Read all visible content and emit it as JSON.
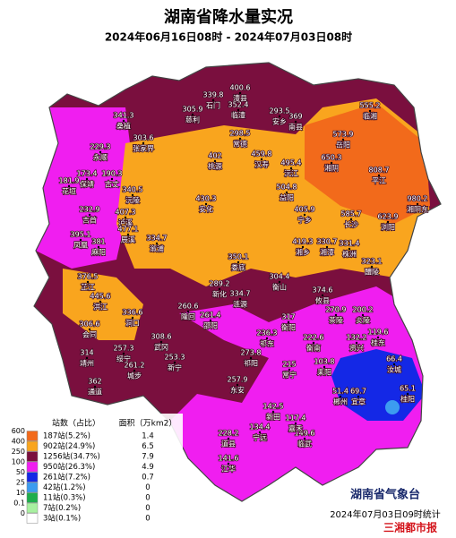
{
  "header": {
    "title": "湖南省降水量实况",
    "subtitle": "2024年06月16日08时 - 2024年07月03日08时"
  },
  "legend": {
    "col_stations": "站数（占比）",
    "col_area": "面积（万km2）",
    "rows": [
      {
        "level": 600,
        "color": "#f26a1b",
        "stations": "187站(5.2%)",
        "area": 1.4
      },
      {
        "level": 400,
        "color": "#f9a51e",
        "stations": "902站(24.9%)",
        "area": 6.5
      },
      {
        "level": 250,
        "color": "#7a0f3e",
        "stations": "1256站(34.7%)",
        "area": 7.9
      },
      {
        "level": 100,
        "color": "#f01ef0",
        "stations": "950站(26.3%)",
        "area": 4.9
      },
      {
        "level": 50,
        "color": "#1428e6",
        "stations": "261站(7.2%)",
        "area": 0.7
      },
      {
        "level": 25,
        "color": "#3c9cf0",
        "stations": "42站(1.2%)",
        "area": 0
      },
      {
        "level": 10,
        "color": "#1fae4c",
        "stations": "11站(0.3%)",
        "area": 0
      },
      {
        "level": 0.1,
        "color": "#a8f0a0",
        "stations": "7站(0.2%)",
        "area": 0
      },
      {
        "level": 0,
        "color": "#ffffff",
        "stations": "3站(0.1%)",
        "area": 0
      }
    ]
  },
  "stations": [
    {
      "name": "桑植",
      "value": 341.3
    },
    {
      "name": "张家界",
      "value": 303.6
    },
    {
      "name": "永顺",
      "value": 229.3
    },
    {
      "name": "保靖",
      "value": 173.4
    },
    {
      "name": "古丈",
      "value": 190.3
    },
    {
      "name": "花垣",
      "value": 181.9
    },
    {
      "name": "吉首",
      "value": 232.9
    },
    {
      "name": "凤凰",
      "value": 395.1
    },
    {
      "name": "麻阳",
      "value": 381
    },
    {
      "name": "沅陵",
      "value": 340.5
    },
    {
      "name": "泸溪",
      "value": 407.3
    },
    {
      "name": "辰溪",
      "value": 477.1
    },
    {
      "name": "溆浦",
      "value": 334.7
    },
    {
      "name": "芷江",
      "value": 376.5
    },
    {
      "name": "洪江",
      "value": 445.6
    },
    {
      "name": "会同",
      "value": 306.6
    },
    {
      "name": "靖州",
      "value": 314
    },
    {
      "name": "通道",
      "value": 362
    },
    {
      "name": "绥宁",
      "value": 257.3
    },
    {
      "name": "城步",
      "value": 261.2
    },
    {
      "name": "洞口",
      "value": 336.6
    },
    {
      "name": "隆回",
      "value": 260.6
    },
    {
      "name": "新宁",
      "value": 253.3
    },
    {
      "name": "武冈",
      "value": 308.6
    },
    {
      "name": "邵阳",
      "value": 261.4
    },
    {
      "name": "新化",
      "value": 289.2
    },
    {
      "name": "涟源",
      "value": 334.7
    },
    {
      "name": "安化",
      "value": 430.3
    },
    {
      "name": "桃源",
      "value": 402
    },
    {
      "name": "石门",
      "value": 339.8
    },
    {
      "name": "澧县",
      "value": 400.6
    },
    {
      "name": "临澧",
      "value": 352.4
    },
    {
      "name": "慈利",
      "value": 305.9
    },
    {
      "name": "安乡",
      "value": 293.5
    },
    {
      "name": "南县",
      "value": 369
    },
    {
      "name": "岳阳",
      "value": 573.9
    },
    {
      "name": "临湘",
      "value": 555.2
    },
    {
      "name": "常德",
      "value": 298.5
    },
    {
      "name": "汉寿",
      "value": 459.8
    },
    {
      "name": "沅江",
      "value": 495.4
    },
    {
      "name": "湘阴",
      "value": 650.3
    },
    {
      "name": "平江",
      "value": 808.7
    },
    {
      "name": "浏阳",
      "value": 623.9
    },
    {
      "name": "长沙",
      "value": 585.7
    },
    {
      "name": "宁乡",
      "value": 405.9
    },
    {
      "name": "益阳",
      "value": 504.8
    },
    {
      "name": "湘乡",
      "value": 419.3
    },
    {
      "name": "湘潭",
      "value": 330.7
    },
    {
      "name": "株洲",
      "value": 331.4
    },
    {
      "name": "醴陵",
      "value": 323.1
    },
    {
      "name": "娄底",
      "value": 350.1
    },
    {
      "name": "攸县",
      "value": 374.6
    },
    {
      "name": "衡山",
      "value": 304.4
    },
    {
      "name": "茶陵",
      "value": 270.9
    },
    {
      "name": "炎陵",
      "value": 200.2
    },
    {
      "name": "衡阳",
      "value": 317
    },
    {
      "name": "衡南",
      "value": 222.6
    },
    {
      "name": "祁东",
      "value": 236.3
    },
    {
      "name": "祁阳",
      "value": 273.8
    },
    {
      "name": "耒阳",
      "value": 103.8
    },
    {
      "name": "常宁",
      "value": 215
    },
    {
      "name": "资兴",
      "value": 132.2
    },
    {
      "name": "桂东",
      "value": 119.6
    },
    {
      "name": "汝城",
      "value": 66.4
    },
    {
      "name": "宜章",
      "value": 69.7
    },
    {
      "name": "郴州",
      "value": 51.4
    },
    {
      "name": "临武",
      "value": 149.6
    },
    {
      "name": "嘉禾",
      "value": 117.4
    },
    {
      "name": "新田",
      "value": 142.5
    },
    {
      "name": "宁远",
      "value": 134.4
    },
    {
      "name": "道县",
      "value": 228.2
    },
    {
      "name": "江华",
      "value": 141.6
    },
    {
      "name": "东安",
      "value": 257.9
    },
    {
      "name": "桂阳",
      "value": 65.1
    },
    {
      "name": "湘阴东",
      "value": 980.2
    }
  ],
  "footer": {
    "org": "湖南省气象台",
    "time": "2024年07月03日09时统计",
    "logo": "三湘都市报"
  }
}
